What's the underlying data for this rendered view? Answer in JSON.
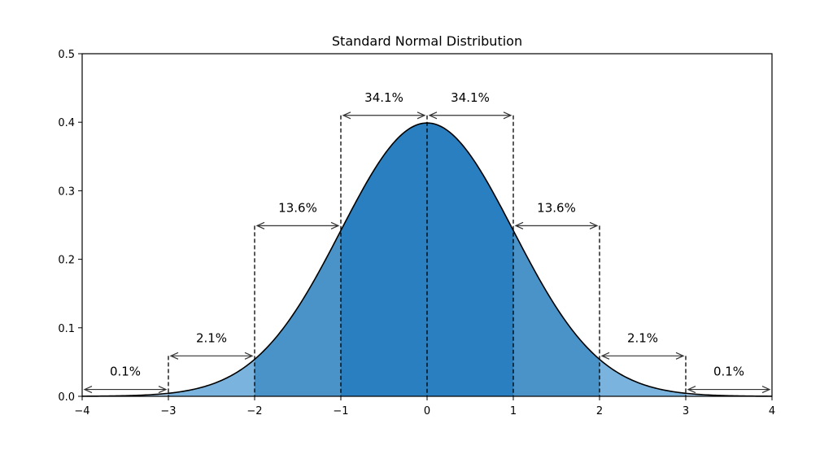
{
  "chart_data": {
    "type": "area",
    "title": "Standard Normal Distribution",
    "xlabel": "",
    "ylabel": "",
    "xlim": [
      -4,
      4
    ],
    "ylim": [
      0,
      0.5
    ],
    "x_ticks": [
      "−4",
      "−3",
      "−2",
      "−1",
      "0",
      "1",
      "2",
      "3",
      "4"
    ],
    "x_tick_values": [
      -4,
      -3,
      -2,
      -1,
      0,
      1,
      2,
      3,
      4
    ],
    "y_ticks": [
      "0.0",
      "0.1",
      "0.2",
      "0.3",
      "0.4",
      "0.5"
    ],
    "y_tick_values": [
      0,
      0.1,
      0.2,
      0.3,
      0.4,
      0.5
    ],
    "curve": "standard normal pdf, mean 0, sd 1",
    "regions": [
      {
        "from": -4,
        "to": -3,
        "color": "#a9cdea"
      },
      {
        "from": -3,
        "to": -2,
        "color": "#7ab3dd"
      },
      {
        "from": -2,
        "to": -1,
        "color": "#4a93c8"
      },
      {
        "from": -1,
        "to": 0,
        "color": "#2a7fc0"
      },
      {
        "from": 0,
        "to": 1,
        "color": "#2a7fc0"
      },
      {
        "from": 1,
        "to": 2,
        "color": "#4a93c8"
      },
      {
        "from": 2,
        "to": 3,
        "color": "#7ab3dd"
      },
      {
        "from": 3,
        "to": 4,
        "color": "#a9cdea"
      }
    ],
    "annotations": [
      {
        "label": "0.1%",
        "from": -4,
        "to": -3,
        "y": 0.01
      },
      {
        "label": "2.1%",
        "from": -3,
        "to": -2,
        "y": 0.059
      },
      {
        "label": "13.6%",
        "from": -2,
        "to": -1,
        "y": 0.249
      },
      {
        "label": "34.1%",
        "from": -1,
        "to": 0,
        "y": 0.41
      },
      {
        "label": "34.1%",
        "from": 0,
        "to": 1,
        "y": 0.41
      },
      {
        "label": "13.6%",
        "from": 1,
        "to": 2,
        "y": 0.249
      },
      {
        "label": "2.1%",
        "from": 2,
        "to": 3,
        "y": 0.059
      },
      {
        "label": "0.1%",
        "from": 3,
        "to": 4,
        "y": 0.01
      }
    ],
    "grid": false,
    "legend": "none"
  }
}
